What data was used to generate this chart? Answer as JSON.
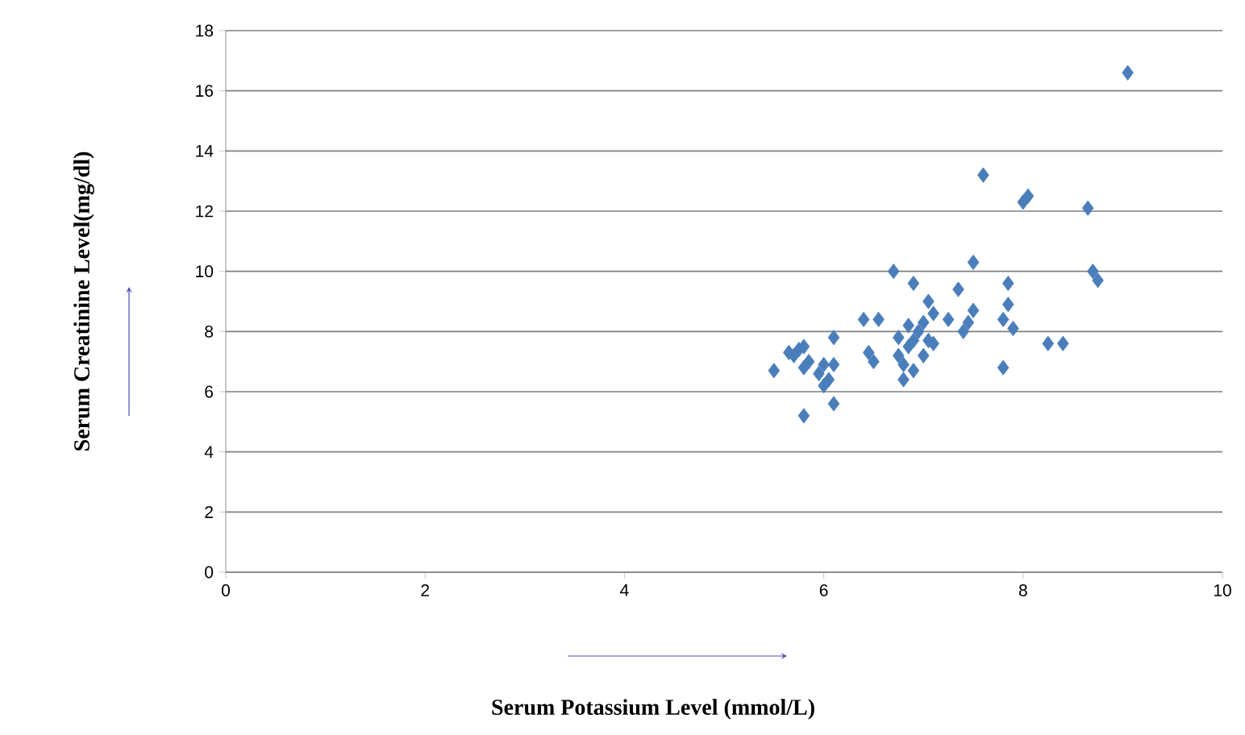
{
  "chart_data": {
    "type": "scatter",
    "xlabel": "Serum Potassium Level  (mmol/L)",
    "ylabel": "Serum  Creatinine Level(mg/dl)",
    "xlim": [
      0,
      10
    ],
    "ylim": [
      0,
      18
    ],
    "xticks": [
      0,
      2,
      4,
      6,
      8,
      10
    ],
    "yticks": [
      0,
      2,
      4,
      6,
      8,
      10,
      12,
      14,
      16,
      18
    ],
    "grid": "y",
    "marker": "diamond",
    "series": [
      {
        "color": "#4a7ebb",
        "x": [
          5.5,
          5.65,
          5.7,
          5.75,
          5.8,
          5.8,
          5.85,
          5.8,
          5.95,
          6.0,
          6.05,
          6.1,
          6.1,
          6.1,
          6.0,
          6.4,
          6.45,
          6.5,
          6.55,
          6.7,
          6.75,
          6.75,
          6.8,
          6.8,
          6.85,
          6.85,
          6.9,
          6.9,
          6.9,
          6.95,
          7.0,
          7.0,
          7.05,
          7.05,
          7.1,
          7.1,
          7.25,
          7.35,
          7.4,
          7.45,
          7.5,
          7.5,
          7.6,
          7.8,
          7.8,
          7.85,
          7.85,
          7.9,
          8.0,
          8.05,
          8.25,
          8.4,
          8.65,
          8.7,
          8.75,
          9.05
        ],
        "values": [
          6.7,
          7.3,
          7.2,
          7.4,
          7.5,
          6.8,
          7.0,
          5.2,
          6.6,
          6.9,
          6.4,
          7.8,
          6.9,
          5.6,
          6.2,
          8.4,
          7.3,
          7.0,
          8.4,
          10.0,
          7.8,
          7.2,
          6.9,
          6.4,
          7.5,
          8.2,
          9.6,
          7.7,
          6.7,
          8.0,
          7.2,
          8.3,
          9.0,
          7.7,
          8.6,
          7.6,
          8.4,
          9.4,
          8.0,
          8.3,
          10.3,
          8.7,
          13.2,
          8.4,
          6.8,
          9.6,
          8.9,
          8.1,
          12.3,
          12.5,
          7.6,
          7.6,
          12.1,
          10.0,
          9.7,
          16.6
        ]
      }
    ]
  }
}
